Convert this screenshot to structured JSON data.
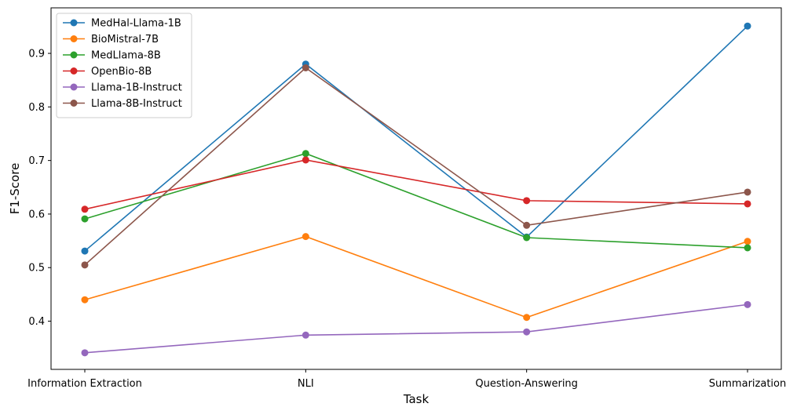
{
  "chart_data": {
    "type": "line",
    "xlabel": "Task",
    "ylabel": "F1-Score",
    "categories": [
      "Information Extraction",
      "NLI",
      "Question-Answering",
      "Summarization"
    ],
    "ylim": [
      0.31,
      0.985
    ],
    "yticks": [
      0.4,
      0.5,
      0.6,
      0.7,
      0.8,
      0.9
    ],
    "ytick_labels": [
      "0.4",
      "0.5",
      "0.6",
      "0.7",
      "0.8",
      "0.9"
    ],
    "grid": false,
    "legend_position": "top-left",
    "series": [
      {
        "name": "MedHal-Llama-1B",
        "color": "#1f77b4",
        "values": [
          0.531,
          0.88,
          0.557,
          0.951
        ]
      },
      {
        "name": "BioMistral-7B",
        "color": "#ff7f0e",
        "values": [
          0.44,
          0.558,
          0.407,
          0.549
        ]
      },
      {
        "name": "MedLlama-8B",
        "color": "#2ca02c",
        "values": [
          0.591,
          0.713,
          0.556,
          0.537
        ]
      },
      {
        "name": "OpenBio-8B",
        "color": "#d62728",
        "values": [
          0.609,
          0.701,
          0.625,
          0.619
        ]
      },
      {
        "name": "Llama-1B-Instruct",
        "color": "#9467bd",
        "values": [
          0.341,
          0.374,
          0.38,
          0.431
        ]
      },
      {
        "name": "Llama-8B-Instruct",
        "color": "#8c564b",
        "values": [
          0.505,
          0.873,
          0.579,
          0.641
        ]
      }
    ]
  }
}
